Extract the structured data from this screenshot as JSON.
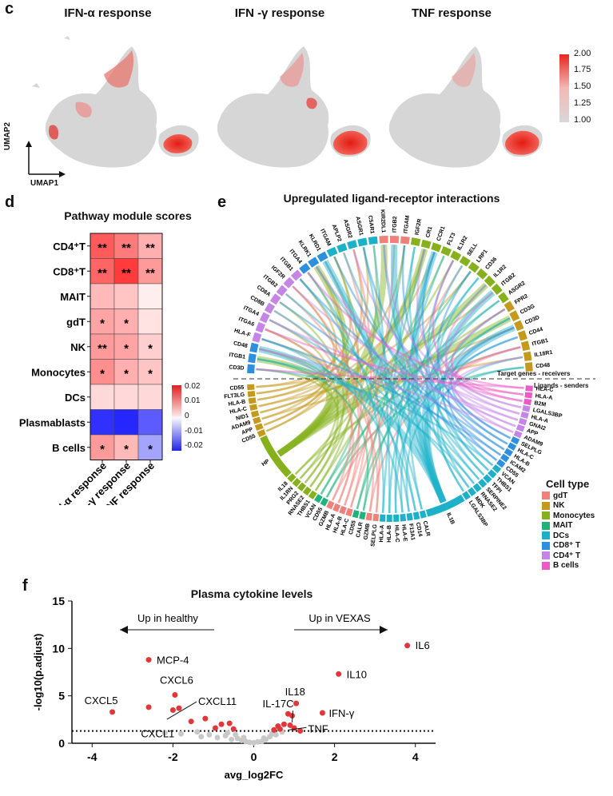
{
  "panels": {
    "c": {
      "label": "c",
      "titles": [
        "IFN-α response",
        "IFN -γ response",
        "TNF response"
      ],
      "axes": {
        "x": "UMAP1",
        "y": "UMAP2"
      },
      "colorbar": {
        "ticks": [
          "2.00",
          "1.75",
          "1.50",
          "1.25",
          "1.00"
        ],
        "min_color": "#d8d8d8",
        "max_color": "#e8261e"
      }
    },
    "d": {
      "label": "d",
      "title": "Pathway module scores",
      "rows": [
        {
          "name": "CD4⁺T",
          "values": [
            0.015,
            0.012,
            0.007
          ],
          "stars": [
            "**",
            "**",
            "**"
          ]
        },
        {
          "name": "CD8⁺T",
          "values": [
            0.014,
            0.018,
            0.009
          ],
          "stars": [
            "**",
            "**",
            "**"
          ]
        },
        {
          "name": "MAIT",
          "values": [
            0.006,
            0.005,
            0.001
          ],
          "stars": [
            "",
            "",
            ""
          ]
        },
        {
          "name": "gdT",
          "values": [
            0.008,
            0.007,
            0.002
          ],
          "stars": [
            "*",
            "*",
            ""
          ]
        },
        {
          "name": "NK",
          "values": [
            0.009,
            0.008,
            0.004
          ],
          "stars": [
            "**",
            "*",
            "*"
          ]
        },
        {
          "name": "Monocytes",
          "values": [
            0.01,
            0.007,
            0.005
          ],
          "stars": [
            "*",
            "*",
            "*"
          ]
        },
        {
          "name": "DCs",
          "values": [
            0.003,
            0.003,
            0.003
          ],
          "stars": [
            "",
            "",
            ""
          ]
        },
        {
          "name": "Plasmablasts",
          "values": [
            -0.019,
            -0.02,
            -0.015
          ],
          "stars": [
            "",
            "",
            ""
          ]
        },
        {
          "name": "B cells",
          "values": [
            0.009,
            0.006,
            -0.008
          ],
          "stars": [
            "*",
            "*",
            "*"
          ]
        }
      ],
      "columns": [
        "IFN-α response",
        "IFN -γ response",
        "TNF response"
      ],
      "colorbar_ticks": [
        "0.02",
        "0.01",
        "0",
        "-0.01",
        "-0.02"
      ]
    },
    "e": {
      "label": "e",
      "title": "Upregulated ligand-receptor interactions",
      "divider_top": "Target genes - receivers",
      "divider_bottom": "Ligands - senders",
      "legend_title": "Cell type",
      "legend": [
        {
          "name": "gdT",
          "color": "#f0817a"
        },
        {
          "name": "NK",
          "color": "#c59a1c"
        },
        {
          "name": "Monocytes",
          "color": "#86b11d"
        },
        {
          "name": "MAIT",
          "color": "#1fb37a"
        },
        {
          "name": "DCs",
          "color": "#1db1c9"
        },
        {
          "name": "CD8⁺ T",
          "color": "#2c8fe0"
        },
        {
          "name": "CD4⁺ T",
          "color": "#c585e6"
        },
        {
          "name": "B cells",
          "color": "#ea5bc5"
        }
      ],
      "receivers": [
        "CD3D",
        "ITGB1",
        "CD48",
        "HLA-F",
        "ITGA6",
        "ITGA4",
        "CD8B",
        "CD8A",
        "ITGB2",
        "IGF2R",
        "ITGB1",
        "ITGA4",
        "KLRK1",
        "KLRD1",
        "ITGAM",
        "APLP2",
        "ASGR2",
        "ASGR1",
        "C5AR1",
        "KIR2DL1",
        "ITGB2",
        "ITGAM",
        "IGF2R",
        "CR1",
        "CCR1",
        "FLT3",
        "IL1R2",
        "SELL",
        "LRP1",
        "CD36",
        "IL1R2",
        "ITGB2",
        "ASGR2",
        "FPR2",
        "CD3G",
        "CD3D",
        "CD44",
        "ITGB1",
        "IL18R1",
        "CD48"
      ],
      "ligands": [
        "CD55",
        "FLT3LG",
        "HLA-B",
        "HLA-C",
        "NID1",
        "ADAM9",
        "APP",
        "CD55",
        "HP",
        "IL18",
        "IL1RN",
        "PRG2",
        "RNASE2",
        "THBS1",
        "VCAN",
        "CD55",
        "GZMB",
        "HLA-A",
        "HLA-B",
        "HLA-C",
        "CD55",
        "CALR",
        "GZMB",
        "SELPLG",
        "HLA-A",
        "HLA-B",
        "HLA-C",
        "HLA-E",
        "F13A1",
        "CD14",
        "CALR",
        "IL1B",
        "LGALS3BP",
        "MDK",
        "RNASE2",
        "SERPINE2",
        "TFPI",
        "THBS1",
        "VCAN",
        "CD55",
        "ICAM2",
        "HLA-B",
        "HLA-C",
        "SELPLG",
        "ADAM9",
        "APP",
        "GNAI2",
        "HLA-A",
        "LGALS3BP",
        "B2M",
        "HLA-A",
        "HLA-C"
      ]
    },
    "f": {
      "label": "f",
      "title": "Plasma cytokine levels",
      "left_arrow": "Up in healthy",
      "right_arrow": "Up in VEXAS",
      "point_labels": [
        "IL6",
        "MCP-4",
        "IL10",
        "CXCL6",
        "CXCL11",
        "IL18",
        "CXCL5",
        "IL-17C",
        "IFN-γ",
        "CXCL1",
        "TNF"
      ]
    }
  },
  "chart_data": {
    "type": "scatter",
    "title": "Plasma cytokine levels",
    "xlabel": "avg_log2FC",
    "ylabel": "-log10(p.adjust)",
    "xlim": [
      -4.5,
      4.5
    ],
    "ylim": [
      0,
      15
    ],
    "xticks": [
      -4,
      -2,
      0,
      2,
      4
    ],
    "yticks": [
      0,
      5,
      10,
      15
    ],
    "threshold": 1.3,
    "significant": [
      {
        "label": "IL6",
        "x": 3.8,
        "y": 10.3
      },
      {
        "label": "MCP-4",
        "x": -2.6,
        "y": 8.8
      },
      {
        "label": "IL10",
        "x": 2.1,
        "y": 7.3
      },
      {
        "label": "CXCL6",
        "x": -1.95,
        "y": 5.1
      },
      {
        "label": "CXCL11",
        "x": -1.85,
        "y": 3.7
      },
      {
        "label": "IL18",
        "x": 1.05,
        "y": 4.2
      },
      {
        "label": "CXCL5",
        "x": -3.5,
        "y": 3.3
      },
      {
        "label": "IL-17C",
        "x": 0.85,
        "y": 3.1
      },
      {
        "label": "IFN-γ",
        "x": 1.7,
        "y": 3.2
      },
      {
        "label": "CXCL1",
        "x": -2.0,
        "y": 3.5
      },
      {
        "label": "TNF",
        "x": 0.75,
        "y": 2.0
      },
      {
        "label": "",
        "x": -2.6,
        "y": 3.8
      },
      {
        "label": "",
        "x": -1.55,
        "y": 2.3
      },
      {
        "label": "",
        "x": -1.2,
        "y": 2.6
      },
      {
        "label": "",
        "x": -0.95,
        "y": 1.6
      },
      {
        "label": "",
        "x": -0.8,
        "y": 2.0
      },
      {
        "label": "",
        "x": -0.6,
        "y": 2.1
      },
      {
        "label": "",
        "x": -0.5,
        "y": 1.5
      },
      {
        "label": "",
        "x": 0.5,
        "y": 1.4
      },
      {
        "label": "",
        "x": 0.6,
        "y": 1.8
      },
      {
        "label": "",
        "x": 0.65,
        "y": 1.5
      },
      {
        "label": "",
        "x": 0.95,
        "y": 2.9
      },
      {
        "label": "",
        "x": 0.9,
        "y": 1.9
      },
      {
        "label": "",
        "x": 1.0,
        "y": 1.6
      },
      {
        "label": "",
        "x": 1.15,
        "y": 1.3
      }
    ],
    "nonsignificant": [
      {
        "x": -2.2,
        "y": 1.1
      },
      {
        "x": -1.8,
        "y": 1.0
      },
      {
        "x": -1.4,
        "y": 1.2
      },
      {
        "x": -1.1,
        "y": 0.9
      },
      {
        "x": -0.9,
        "y": 0.6
      },
      {
        "x": -0.7,
        "y": 0.8
      },
      {
        "x": -0.55,
        "y": 0.4
      },
      {
        "x": -0.4,
        "y": 0.5
      },
      {
        "x": -0.3,
        "y": 0.3
      },
      {
        "x": -0.2,
        "y": 0.2
      },
      {
        "x": -0.1,
        "y": 0.1
      },
      {
        "x": 0.0,
        "y": 0.05
      },
      {
        "x": 0.1,
        "y": 0.15
      },
      {
        "x": 0.2,
        "y": 0.2
      },
      {
        "x": 0.3,
        "y": 0.4
      },
      {
        "x": 0.4,
        "y": 0.7
      },
      {
        "x": 0.45,
        "y": 1.0
      },
      {
        "x": 0.55,
        "y": 0.9
      },
      {
        "x": -0.25,
        "y": 0.6
      },
      {
        "x": 0.25,
        "y": 0.55
      },
      {
        "x": -0.65,
        "y": 1.1
      },
      {
        "x": 0.7,
        "y": 1.2
      },
      {
        "x": -1.3,
        "y": 0.7
      },
      {
        "x": -0.45,
        "y": 0.9
      }
    ]
  }
}
